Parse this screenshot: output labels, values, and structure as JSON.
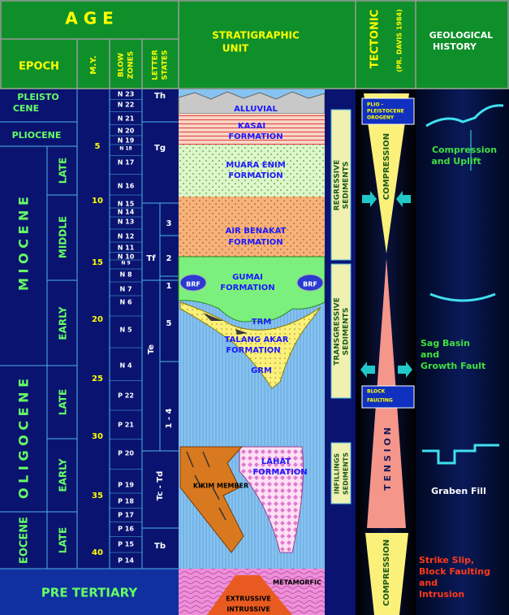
{
  "header": {
    "age": "A G E",
    "epoch": "EPOCH",
    "my": "M.Y.",
    "blow_zones": [
      "BLOW",
      "ZONES"
    ],
    "letter_states": [
      "LETTER",
      "STATES"
    ],
    "stratigraphic_unit": [
      "STRATIGRAPHIC",
      "UNIT"
    ],
    "tectonic": "TECTONIC",
    "tectonic_source": "(PR. DAVIS 1984)",
    "geological_history": [
      "GEOLOGICAL",
      "HISTORY"
    ]
  },
  "epochs": {
    "pleistocene": [
      "PLEISTO",
      "CENE"
    ],
    "pliocene": "PLIOCENE",
    "miocene": "M I O C E N E",
    "oligocene": "O L I G O C E N E",
    "eocene": "EOCENE",
    "pre_tertiary": "PRE TERTIARY"
  },
  "sub_epochs": [
    "LATE",
    "MIDDLE",
    "EARLY",
    "LATE",
    "EARLY",
    "LATE"
  ],
  "my": [
    5,
    10,
    15,
    20,
    25,
    30,
    35,
    40
  ],
  "blow_zones": [
    "N 23",
    "N 22",
    "N 21",
    "N 20",
    "N 19",
    "N 18",
    "N 17",
    "N 16",
    "N 15",
    "N 14",
    "N 13",
    "N 12",
    "N 11",
    "N 10",
    "N 9",
    "N 8",
    "N 7",
    "N 6",
    "N 5",
    "N 4",
    "P 22",
    "P 21",
    "P 20",
    "P 19",
    "P 18",
    "P 17",
    "P 16",
    "P 15",
    "P 14"
  ],
  "letter_states": [
    "Th",
    "Tg",
    "Tf",
    "3",
    "2",
    "1",
    "5",
    "Te",
    "1 - 4",
    "Tc - Td",
    "Tb"
  ],
  "formations": {
    "alluvial": "ALLUVIAL",
    "kasai": [
      "KASAI",
      "FORMATION"
    ],
    "muara_enim": [
      "MUARA ENIM",
      "FORMATION"
    ],
    "air_benakat": [
      "AIR BENAKAT",
      "FORMATION"
    ],
    "gumai": [
      "GUMAI",
      "FORMATION"
    ],
    "brf_left": "BRF",
    "brf_right": "BRF",
    "trm": "TRM",
    "talang_akar": [
      "TALANG AKAR",
      "FORMATION"
    ],
    "grm": "GRM",
    "lahat": [
      "LAHAT",
      "FORMATION"
    ],
    "kikim": "KIKIM MEMBER",
    "metamorfic": "METAMORFIC",
    "extrussive": "EXTRUSSIVE",
    "intrussive": "INTRUSSIVE"
  },
  "sediments": [
    [
      "REGRESSIVE",
      "SEDIMENTS"
    ],
    [
      "TRANSGRESSIVE",
      "SEDIMENTS"
    ],
    [
      "INFILLINGS",
      "SEDIMENTS"
    ]
  ],
  "tectonic": {
    "orogeny": [
      "PLIO -",
      "PLEISTOCENE",
      "OROGENY"
    ],
    "compression_top": "COMPRESSION",
    "block_faulting": [
      "BLOCK",
      "FAULTING"
    ],
    "tension": "T E N S I O N",
    "compression_bottom": "COMPRESSION"
  },
  "history": [
    [
      "Compression",
      "and Uplift"
    ],
    [
      "Sag Basin",
      "and",
      "Growth Fault"
    ],
    [
      "Graben Fill"
    ],
    [
      "Strike Slip,",
      "Block Faulting",
      "and",
      "Intrusion"
    ]
  ]
}
